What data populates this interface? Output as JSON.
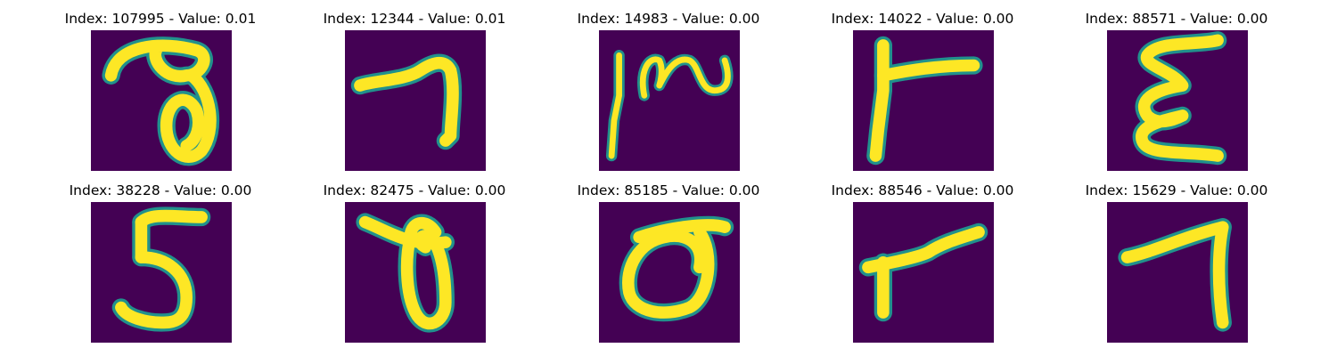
{
  "colors": {
    "background": "#440154",
    "stroke": "#fde725",
    "edge": "#21918c"
  },
  "panels": [
    {
      "title": "Index: 107995 - Value: 0.01"
    },
    {
      "title": "Index: 12344 - Value: 0.01"
    },
    {
      "title": "Index: 14983 - Value: 0.00"
    },
    {
      "title": "Index: 14022 - Value: 0.00"
    },
    {
      "title": "Index: 88571 - Value: 0.00"
    },
    {
      "title": "Index: 38228 - Value: 0.00"
    },
    {
      "title": "Index: 82475 - Value: 0.00"
    },
    {
      "title": "Index: 85185 - Value: 0.00"
    },
    {
      "title": "Index: 88546 - Value: 0.00"
    },
    {
      "title": "Index: 15629 - Value: 0.00"
    }
  ]
}
